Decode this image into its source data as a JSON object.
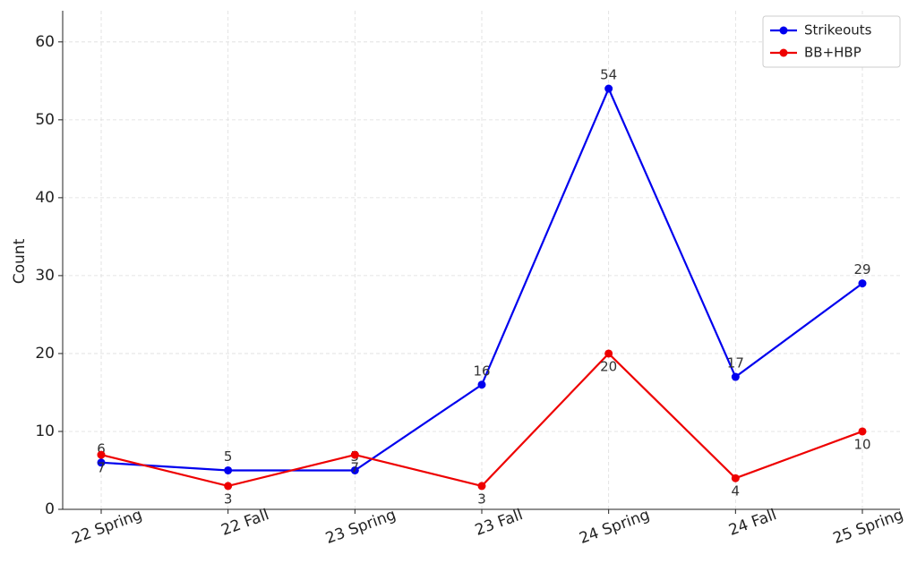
{
  "chart_data": {
    "type": "line",
    "y_label": "Count",
    "categories": [
      "22 Spring",
      "22 Fall",
      "23 Spring",
      "23 Fall",
      "24 Spring",
      "24 Fall",
      "25 Spring"
    ],
    "series": [
      {
        "name": "Strikeouts",
        "color": "#0000ee",
        "values": [
          6,
          5,
          5,
          16,
          54,
          17,
          29
        ]
      },
      {
        "name": "BB+HBP",
        "color": "#ee0000",
        "values": [
          7,
          3,
          7,
          3,
          20,
          4,
          10
        ]
      }
    ],
    "ylim": [
      0,
      64
    ],
    "yticks": [
      0,
      10,
      20,
      30,
      40,
      50,
      60
    ],
    "grid": true,
    "legend": "upper right"
  }
}
